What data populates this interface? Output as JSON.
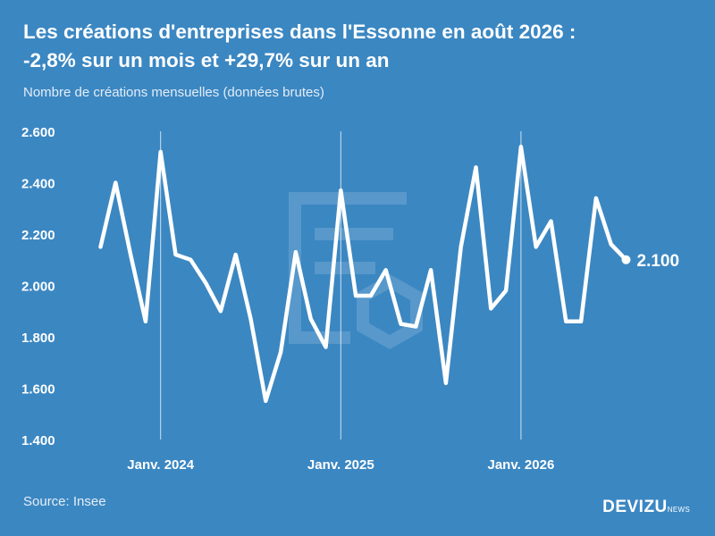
{
  "title_line1": "Les créations d'entreprises dans l'Essonne en août 2026 :",
  "title_line2": "-2,8% sur un mois et +29,7% sur un an",
  "subtitle": "Nombre de créations mensuelles (données brutes)",
  "source": "Source: Insee",
  "logo": {
    "main": "DEVIZU",
    "sub": "NEWS"
  },
  "colors": {
    "background": "#3b87c2",
    "line": "#ffffff"
  },
  "chart_data": {
    "type": "line",
    "title": "Les créations d'entreprises dans l'Essonne en août 2026 : -2,8% sur un mois et +29,7% sur un an",
    "ylabel": "",
    "xlabel": "",
    "ylim": [
      1400,
      2600
    ],
    "yticks": [
      1400,
      1600,
      1800,
      2000,
      2200,
      2400,
      2600
    ],
    "ytick_labels": [
      "1.400",
      "1.600",
      "1.800",
      "2.000",
      "2.200",
      "2.400",
      "2.600"
    ],
    "xtick_labels": [
      {
        "label": "Janv. 2024",
        "index": 4
      },
      {
        "label": "Janv. 2025",
        "index": 16
      },
      {
        "label": "Janv. 2026",
        "index": 28
      }
    ],
    "series": [
      {
        "values": [
          2150,
          2400,
          2120,
          1860,
          2520,
          2120,
          2100,
          2010,
          1900,
          2120,
          1870,
          1550,
          1740,
          2130,
          1870,
          1760,
          2370,
          1960,
          1960,
          2060,
          1850,
          1840,
          2060,
          1620,
          2150,
          2460,
          1910,
          1980,
          2540,
          2150,
          2250,
          1860,
          1860,
          2340,
          2160,
          2100
        ]
      }
    ],
    "last_value_label": "2.100",
    "grid": false,
    "vertical_markers": true
  }
}
